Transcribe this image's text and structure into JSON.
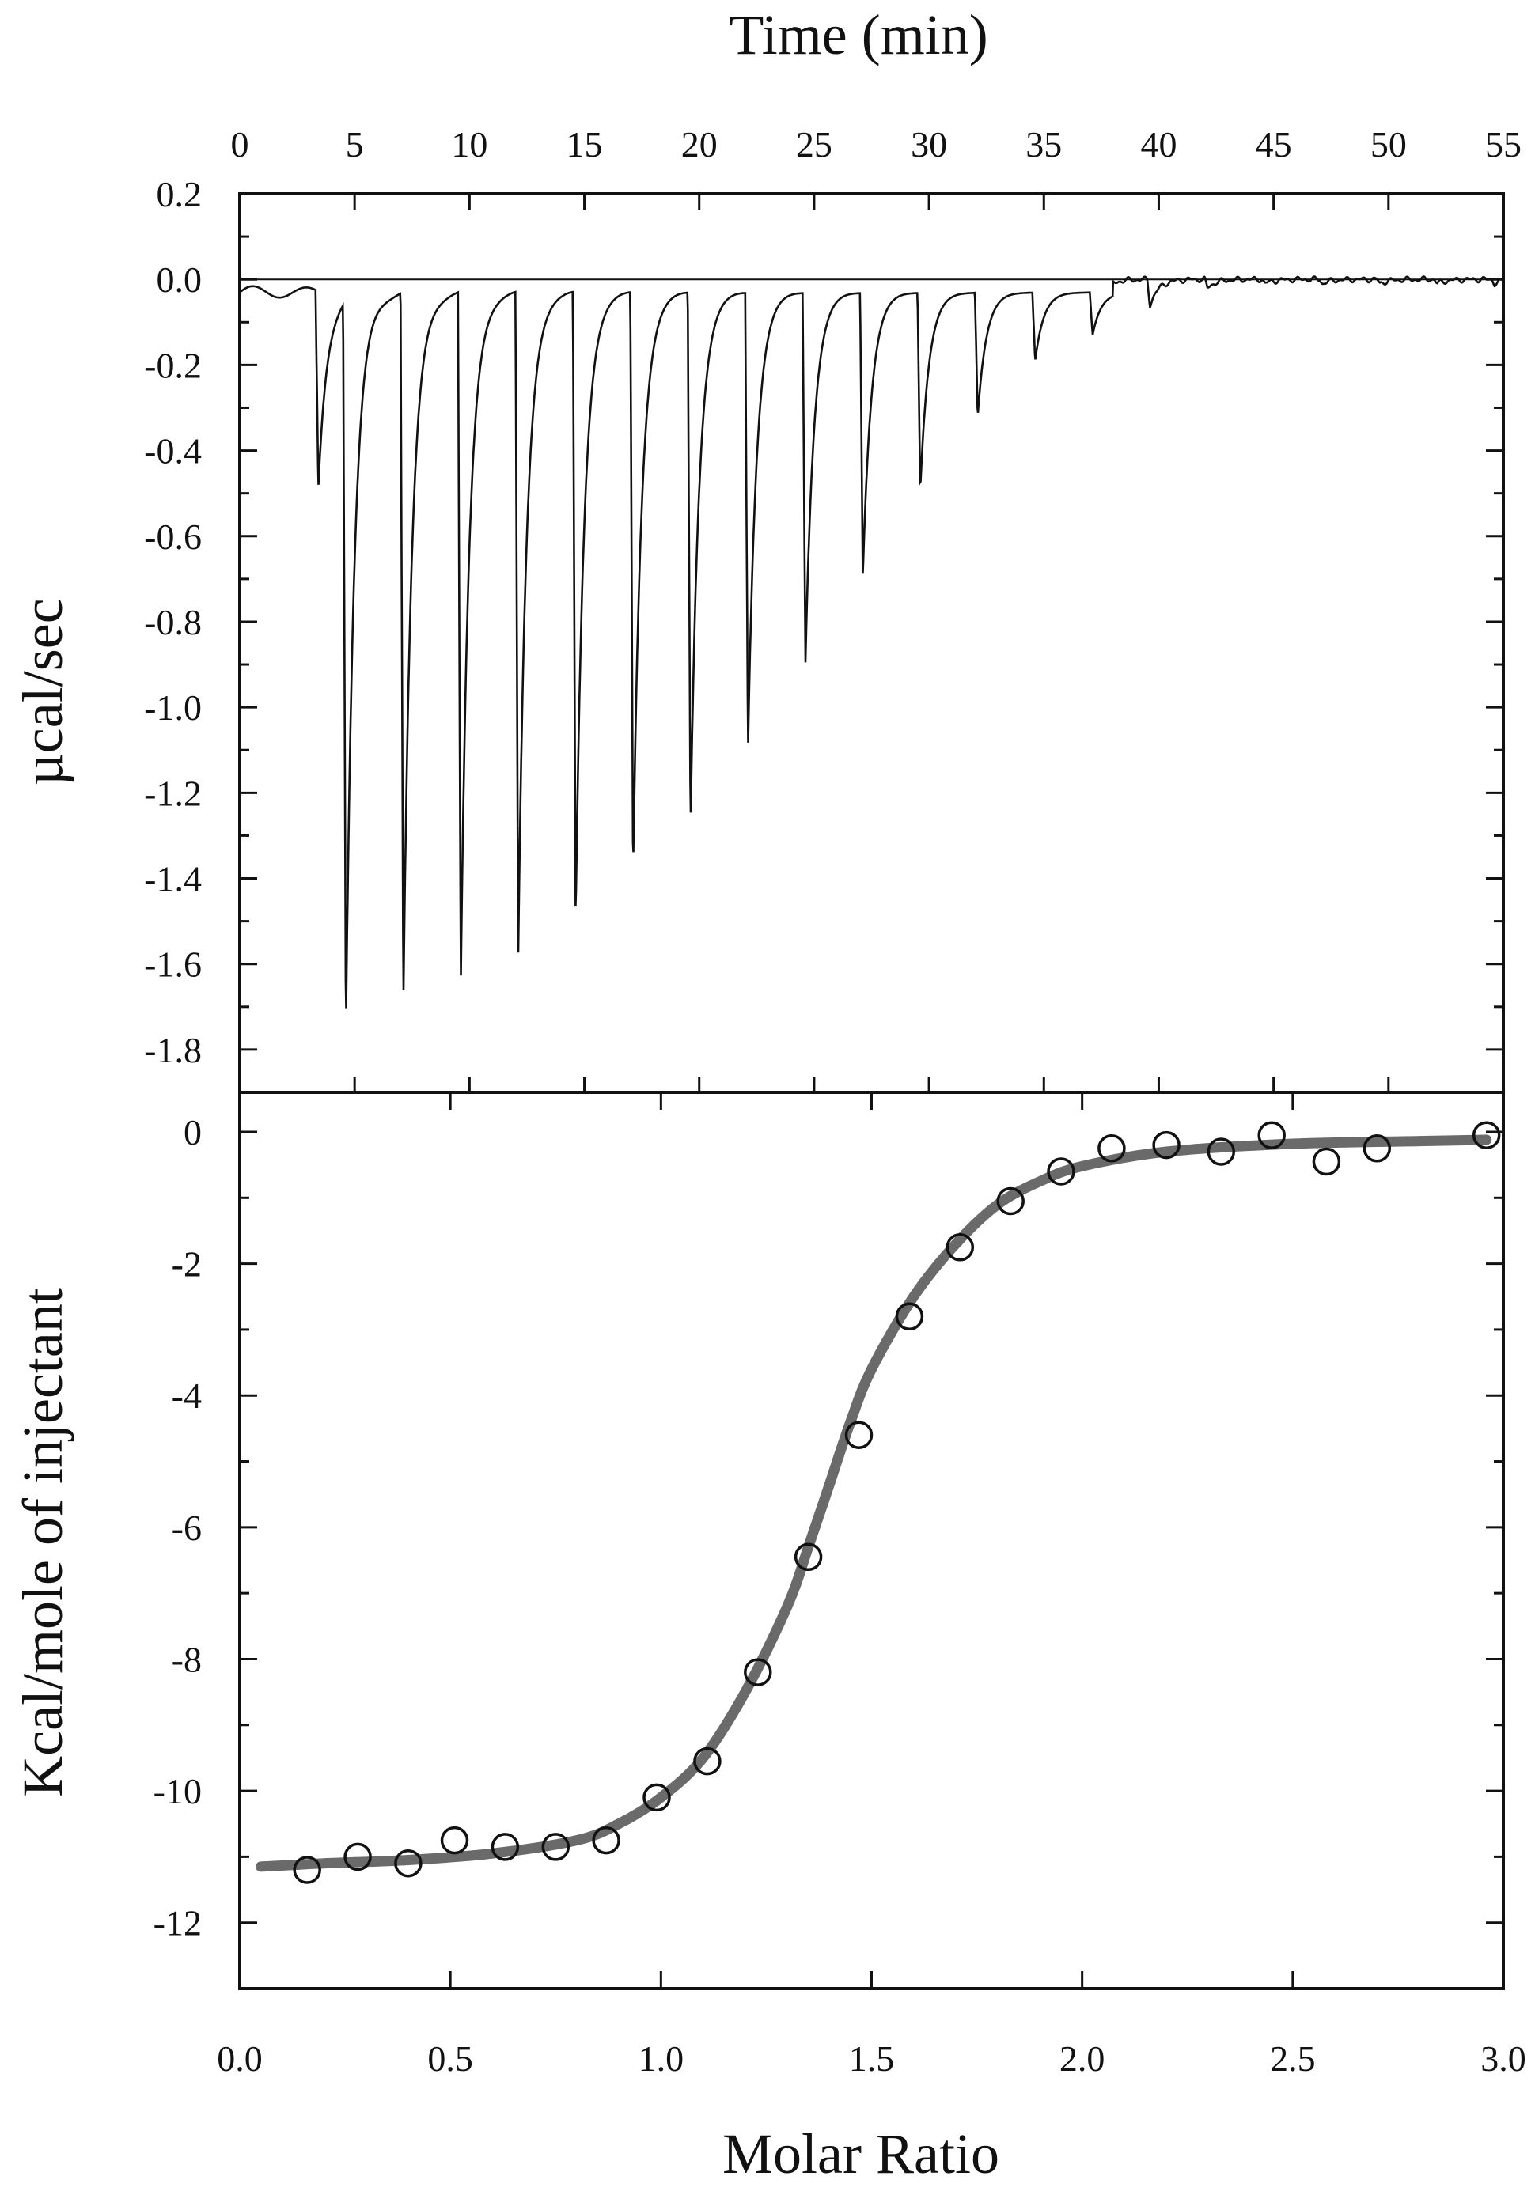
{
  "chart_data": [
    {
      "type": "line",
      "panel": "top",
      "title": "",
      "xlabel": "Time (min)",
      "ylabel": "µcal/sec",
      "xlim": [
        0,
        55
      ],
      "ylim": [
        -1.9,
        0.2
      ],
      "x_ticks": [
        0,
        5,
        10,
        15,
        20,
        25,
        30,
        35,
        40,
        45,
        50,
        55
      ],
      "x_tick_labels": [
        "0",
        "5",
        "10",
        "15",
        "20",
        "25",
        "30",
        "35",
        "40",
        "45",
        "50",
        "55"
      ],
      "y_ticks": [
        0.2,
        0.0,
        -0.2,
        -0.4,
        -0.6,
        -0.8,
        -1.0,
        -1.2,
        -1.4,
        -1.6,
        -1.8
      ],
      "y_tick_labels": [
        "0.2",
        "0.0",
        "-0.2",
        "-0.4",
        "-0.6",
        "-0.8",
        "-1.0",
        "-1.2",
        "-1.4",
        "-1.6",
        "-1.8"
      ],
      "baseline": 0.0,
      "injection_times": [
        3.3,
        4.5,
        7.0,
        9.5,
        12.0,
        14.5,
        17.0,
        19.5,
        22.0,
        24.5,
        27.0,
        29.5,
        32.0,
        34.5,
        37.0,
        39.5,
        42.0,
        44.5,
        47.0,
        49.5,
        52.0,
        54.5
      ],
      "injection_peaks": [
        -0.46,
        -1.71,
        -1.67,
        -1.62,
        -1.55,
        -1.47,
        -1.36,
        -1.25,
        -1.07,
        -0.87,
        -0.66,
        -0.46,
        -0.29,
        -0.16,
        -0.1,
        -0.06,
        -0.02,
        -0.01,
        -0.01,
        -0.01,
        -0.01,
        -0.01
      ],
      "grid": false
    },
    {
      "type": "scatter",
      "panel": "bottom",
      "title": "",
      "xlabel": "Molar Ratio",
      "ylabel": "Kcal/mole of injectant",
      "xlim": [
        0.0,
        3.0
      ],
      "ylim": [
        -13,
        0.6
      ],
      "x_ticks": [
        0.0,
        0.5,
        1.0,
        1.5,
        2.0,
        2.5,
        3.0
      ],
      "x_tick_labels": [
        "0.0",
        "0.5",
        "1.0",
        "1.5",
        "2.0",
        "2.5",
        "3.0"
      ],
      "y_ticks": [
        0,
        -2,
        -4,
        -6,
        -8,
        -10,
        -12
      ],
      "y_tick_labels": [
        "0",
        "-2",
        "-4",
        "-6",
        "-8",
        "-10",
        "-12"
      ],
      "series": [
        {
          "kind": "points",
          "x": [
            0.16,
            0.28,
            0.4,
            0.51,
            0.63,
            0.75,
            0.87,
            0.99,
            1.11,
            1.23,
            1.35,
            1.47,
            1.59,
            1.71,
            1.83,
            1.95,
            2.07,
            2.2,
            2.33,
            2.45,
            2.58,
            2.7,
            2.96
          ],
          "y": [
            -11.2,
            -11.0,
            -11.1,
            -10.75,
            -10.85,
            -10.85,
            -10.75,
            -10.1,
            -9.55,
            -8.2,
            -6.45,
            -4.6,
            -2.8,
            -1.75,
            -1.05,
            -0.6,
            -0.25,
            -0.2,
            -0.3,
            -0.05,
            -0.45,
            -0.25,
            -0.05
          ]
        },
        {
          "kind": "fit",
          "x": [
            0.05,
            0.2,
            0.4,
            0.6,
            0.8,
            0.9,
            1.0,
            1.1,
            1.2,
            1.3,
            1.35,
            1.4,
            1.45,
            1.5,
            1.6,
            1.7,
            1.8,
            1.9,
            2.0,
            2.2,
            2.5,
            2.8,
            2.96
          ],
          "y": [
            -11.15,
            -11.1,
            -11.05,
            -10.95,
            -10.75,
            -10.5,
            -10.1,
            -9.5,
            -8.5,
            -7.2,
            -6.3,
            -5.35,
            -4.4,
            -3.6,
            -2.5,
            -1.7,
            -1.1,
            -0.75,
            -0.52,
            -0.3,
            -0.18,
            -0.14,
            -0.12
          ]
        }
      ],
      "grid": false
    }
  ]
}
